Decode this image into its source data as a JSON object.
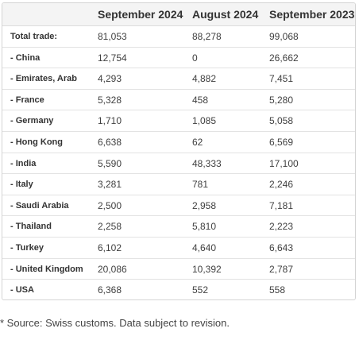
{
  "table": {
    "columns": [
      "",
      "September 2024",
      "August 2024",
      "September 2023"
    ],
    "rows": [
      {
        "label": "Total trade:",
        "sep2024": "81,053",
        "aug2024": "88,278",
        "sep2023": "99,068"
      },
      {
        "label": "- China",
        "sep2024": "12,754",
        "aug2024": "0",
        "sep2023": "26,662"
      },
      {
        "label": "- Emirates, Arab",
        "sep2024": "4,293",
        "aug2024": "4,882",
        "sep2023": "7,451"
      },
      {
        "label": "- France",
        "sep2024": "5,328",
        "aug2024": "458",
        "sep2023": "5,280"
      },
      {
        "label": "- Germany",
        "sep2024": "1,710",
        "aug2024": "1,085",
        "sep2023": "5,058"
      },
      {
        "label": "- Hong Kong",
        "sep2024": "6,638",
        "aug2024": "62",
        "sep2023": "6,569"
      },
      {
        "label": "- India",
        "sep2024": "5,590",
        "aug2024": "48,333",
        "sep2023": "17,100"
      },
      {
        "label": "- Italy",
        "sep2024": "3,281",
        "aug2024": "781",
        "sep2023": "2,246"
      },
      {
        "label": "- Saudi Arabia",
        "sep2024": "2,500",
        "aug2024": "2,958",
        "sep2023": "7,181"
      },
      {
        "label": "- Thailand",
        "sep2024": "2,258",
        "aug2024": "5,810",
        "sep2023": "2,223"
      },
      {
        "label": "- Turkey",
        "sep2024": "6,102",
        "aug2024": "4,640",
        "sep2023": "6,643"
      },
      {
        "label": "- United Kingdom",
        "sep2024": "20,086",
        "aug2024": "10,392",
        "sep2023": "2,787"
      },
      {
        "label": "- USA",
        "sep2024": "6,368",
        "aug2024": "552",
        "sep2023": "558"
      }
    ]
  },
  "footnote": "* Source: Swiss customs. Data subject to revision."
}
